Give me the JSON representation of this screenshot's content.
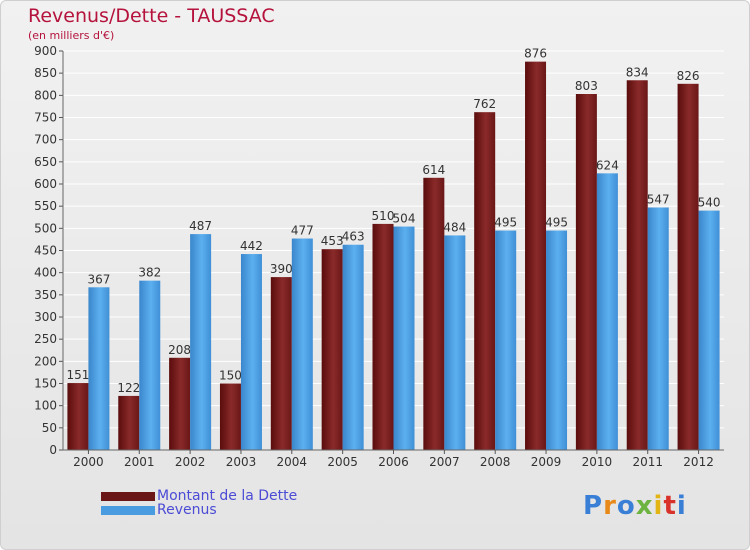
{
  "chart_data": {
    "type": "bar",
    "title": "Revenus/Dette - TAUSSAC",
    "subtitle": "(en milliers d'€)",
    "categories": [
      "2000",
      "2001",
      "2002",
      "2003",
      "2004",
      "2005",
      "2006",
      "2007",
      "2008",
      "2009",
      "2010",
      "2011",
      "2012"
    ],
    "series": [
      {
        "name": "Montant de la Dette",
        "color": "#7a1c1c",
        "values": [
          151,
          122,
          208,
          150,
          390,
          453,
          510,
          614,
          762,
          876,
          803,
          834,
          826
        ]
      },
      {
        "name": "Revenus",
        "color": "#4a9ce0",
        "values": [
          367,
          382,
          487,
          442,
          477,
          463,
          504,
          484,
          495,
          495,
          624,
          547,
          540
        ]
      }
    ],
    "yticks": [
      0,
      50,
      100,
      150,
      200,
      250,
      300,
      350,
      400,
      450,
      500,
      550,
      600,
      650,
      700,
      750,
      800,
      850,
      900
    ],
    "ylim": [
      0,
      900
    ],
    "grid": true,
    "legend_position": "bottom-left"
  },
  "logo": {
    "text": "Proxiti",
    "colors": [
      "#3a7fd6",
      "#e88a1a",
      "#3a7fd6",
      "#6cb33f",
      "#e2b514",
      "#d9322b",
      "#3a7fd6"
    ]
  }
}
